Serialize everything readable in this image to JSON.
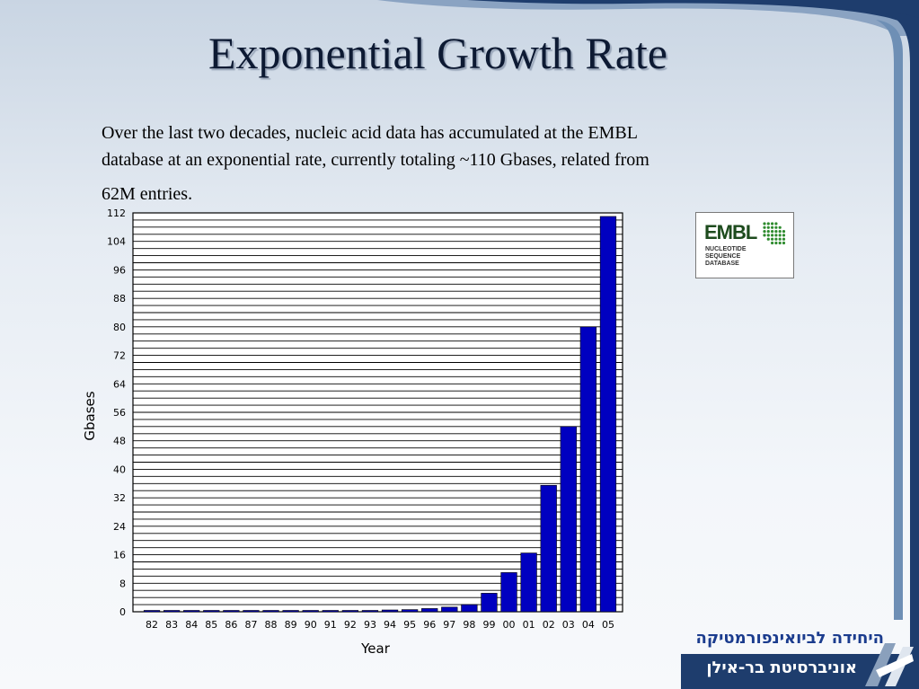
{
  "slide": {
    "title": "Exponential Growth Rate",
    "paragraph_lines": [
      "Over the last two decades, nucleic acid data has accumulated at the EMBL",
      "database at an exponential rate, currently totaling ~110 Gbases, related from",
      "62M entries."
    ],
    "colors": {
      "bar": "#0000c0",
      "title": "#0d1a33",
      "frame_dark": "#1e3d6d",
      "frame_light": "#6e8fb5"
    }
  },
  "logo": {
    "embl_word": "EMBL",
    "embl_sub": [
      "NUCLEOTIDE",
      "SEQUENCE",
      "DATABASE"
    ]
  },
  "university": {
    "line1": "היחידה לביואינפורמטיקה",
    "line2": "אוניברסיטת בר-אילן"
  },
  "chart_data": {
    "type": "bar",
    "categories": [
      "82",
      "83",
      "84",
      "85",
      "86",
      "87",
      "88",
      "89",
      "90",
      "91",
      "92",
      "93",
      "94",
      "95",
      "96",
      "97",
      "98",
      "99",
      "00",
      "01",
      "02",
      "03",
      "04",
      "05"
    ],
    "values": [
      0.01,
      0.01,
      0.02,
      0.03,
      0.04,
      0.05,
      0.07,
      0.1,
      0.13,
      0.17,
      0.2,
      0.25,
      0.5,
      0.6,
      0.9,
      1.3,
      2.0,
      5.2,
      11,
      16.5,
      35.5,
      52,
      80,
      111
    ],
    "xlabel": "Year",
    "ylabel": "Gbases",
    "ylim": [
      0,
      112
    ],
    "yticks": [
      0,
      8,
      16,
      24,
      32,
      40,
      48,
      56,
      64,
      72,
      80,
      88,
      96,
      104,
      112
    ],
    "grid": true,
    "grid_minor_step": 2
  }
}
